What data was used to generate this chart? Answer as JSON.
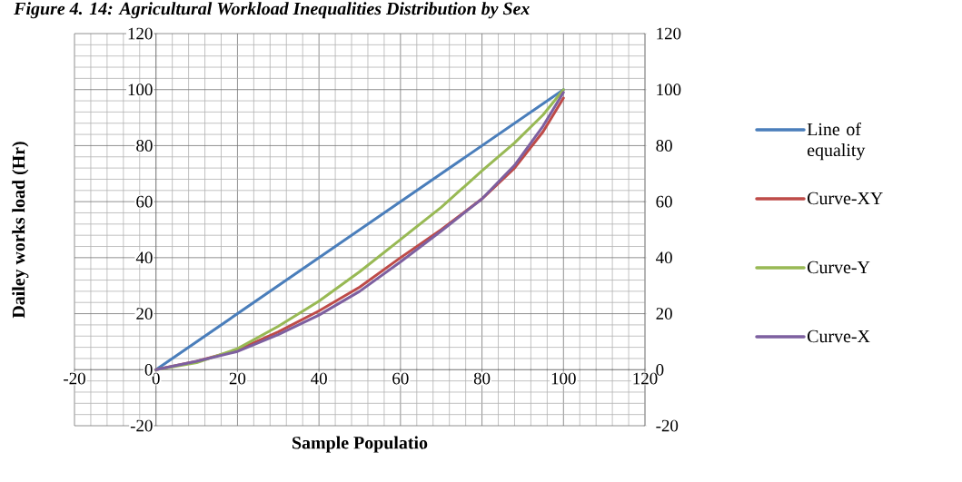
{
  "chart_data": {
    "type": "line",
    "title": "Figure 4. 14: Agricultural Workload Inequalities Distribution by Sex",
    "xlabel": "Sample Populatio",
    "ylabel": "Dailey works load (Hr)",
    "x": [
      0,
      10,
      20,
      30,
      40,
      50,
      60,
      70,
      80,
      88,
      95,
      100
    ],
    "series": [
      {
        "name": "Line of equality",
        "color": "#4a7ebb",
        "x": [
          0,
          100
        ],
        "values": [
          0,
          100
        ]
      },
      {
        "name": "Curve-XY",
        "color": "#be4b48",
        "values": [
          0,
          3,
          7,
          13.5,
          21,
          29.5,
          40,
          50,
          61,
          72,
          85,
          97
        ]
      },
      {
        "name": "Curve-Y",
        "color": "#98b954",
        "values": [
          0,
          2.5,
          7.5,
          15.5,
          24.5,
          35,
          46.5,
          58,
          71,
          81,
          91,
          100
        ]
      },
      {
        "name": "Curve-X",
        "color": "#7d60a0",
        "values": [
          0,
          3,
          6.5,
          12.5,
          19.5,
          28,
          38.5,
          49.5,
          61,
          73,
          87,
          99
        ]
      }
    ],
    "xlim": [
      -20,
      120
    ],
    "ylim": [
      -20,
      120
    ],
    "y2lim": [
      -20,
      120
    ],
    "xticks": [
      -20,
      0,
      20,
      40,
      60,
      80,
      100,
      120
    ],
    "yticks": [
      -20,
      0,
      20,
      40,
      60,
      80,
      100,
      120
    ],
    "y2ticks": [
      -20,
      0,
      20,
      40,
      60,
      80,
      100,
      120
    ],
    "grid": true,
    "legend": "right",
    "marker": "none",
    "line_style": "solid"
  }
}
